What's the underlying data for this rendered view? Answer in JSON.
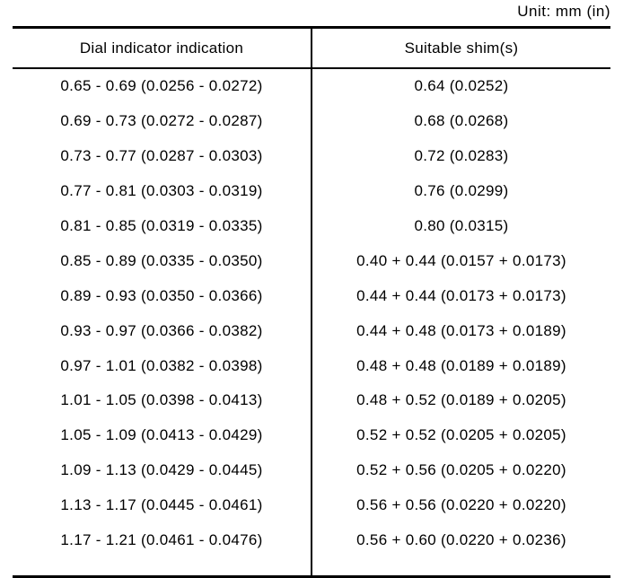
{
  "unit_label": "Unit: mm (in)",
  "table": {
    "headers": {
      "col1": "Dial indicator indication",
      "col2": "Suitable shim(s)"
    },
    "rows": [
      {
        "indication": "0.65 - 0.69 (0.0256 - 0.0272)",
        "shims": "0.64 (0.0252)"
      },
      {
        "indication": "0.69 - 0.73 (0.0272 - 0.0287)",
        "shims": "0.68 (0.0268)"
      },
      {
        "indication": "0.73 - 0.77 (0.0287 - 0.0303)",
        "shims": "0.72 (0.0283)"
      },
      {
        "indication": "0.77 - 0.81 (0.0303 - 0.0319)",
        "shims": "0.76 (0.0299)"
      },
      {
        "indication": "0.81 - 0.85 (0.0319 - 0.0335)",
        "shims": "0.80 (0.0315)"
      },
      {
        "indication": "0.85 - 0.89 (0.0335 - 0.0350)",
        "shims": "0.40 + 0.44 (0.0157 + 0.0173)"
      },
      {
        "indication": "0.89 - 0.93 (0.0350 - 0.0366)",
        "shims": "0.44 + 0.44 (0.0173 + 0.0173)"
      },
      {
        "indication": "0.93 - 0.97 (0.0366 - 0.0382)",
        "shims": "0.44 + 0.48 (0.0173 + 0.0189)"
      },
      {
        "indication": "0.97 - 1.01 (0.0382 - 0.0398)",
        "shims": "0.48 + 0.48 (0.0189 + 0.0189)"
      },
      {
        "indication": "1.01 - 1.05 (0.0398 - 0.0413)",
        "shims": "0.48 + 0.52 (0.0189 + 0.0205)"
      },
      {
        "indication": "1.05 - 1.09 (0.0413 - 0.0429)",
        "shims": "0.52 + 0.52 (0.0205 + 0.0205)"
      },
      {
        "indication": "1.09 - 1.13 (0.0429 - 0.0445)",
        "shims": "0.52 + 0.56 (0.0205 + 0.0220)"
      },
      {
        "indication": "1.13 - 1.17 (0.0445 - 0.0461)",
        "shims": "0.56 + 0.56 (0.0220 + 0.0220)"
      },
      {
        "indication": "1.17 - 1.21 (0.0461 - 0.0476)",
        "shims": "0.56 + 0.60 (0.0220 + 0.0236)"
      }
    ]
  }
}
